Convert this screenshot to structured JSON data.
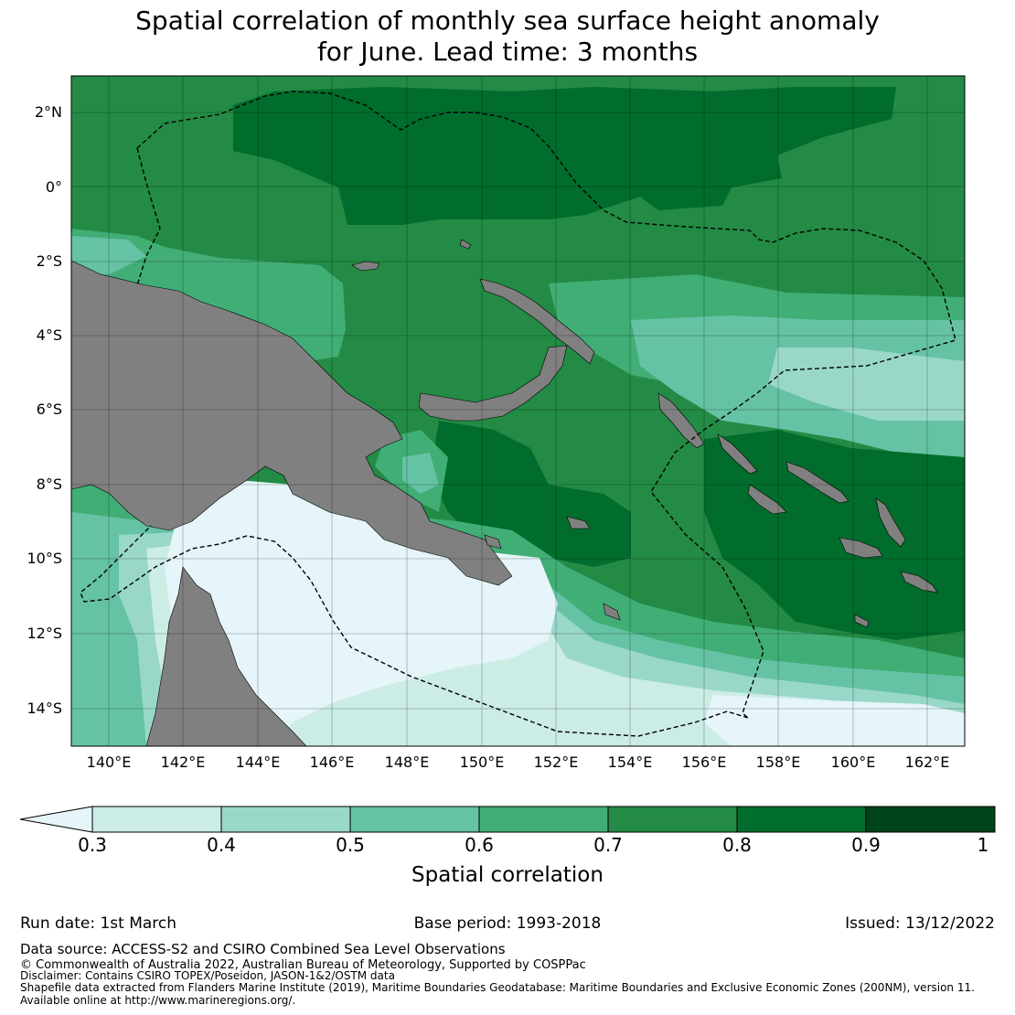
{
  "title_line1": "Spatial correlation of monthly sea surface height anomaly",
  "title_line2": "for June. Lead time: 3 months",
  "map": {
    "lat_labels": [
      "2°N",
      "0°",
      "2°S",
      "4°S",
      "6°S",
      "8°S",
      "10°S",
      "12°S",
      "14°S"
    ],
    "lon_labels": [
      "140°E",
      "142°E",
      "144°E",
      "146°E",
      "148°E",
      "150°E",
      "152°E",
      "154°E",
      "156°E",
      "158°E",
      "160°E",
      "162°E"
    ],
    "land_color": "#808080",
    "eez_boundary_style": "dashed black"
  },
  "colorbar": {
    "title": "Spatial correlation",
    "tick_labels": [
      "0.3",
      "0.4",
      "0.5",
      "0.6",
      "0.7",
      "0.8",
      "0.9",
      "1"
    ],
    "under_color": "#e5f5f9",
    "colors": [
      "#ccece6",
      "#99d8c9",
      "#66c2a4",
      "#41ae76",
      "#238b45",
      "#006d2c",
      "#00441b"
    ]
  },
  "footer": {
    "run_date": "Run date: 1st March",
    "base_period": "Base period: 1993-2018",
    "issued": "Issued: 13/12/2022",
    "data_source": "Data source: ACCESS-S2 and CSIRO Combined Sea Level Observations",
    "copyright": "© Commonwealth of Australia 2022, Australian Bureau of Meteorology, Supported by COSPPac",
    "disclaimer": "Disclaimer: Contains CSIRO TOPEX/Poseidon, JASON-1&2/OSTM data",
    "shapefile": "Shapefile data extracted from Flanders Marine Institute (2019), Maritime Boundaries Geodatabase: Maritime Boundaries and Exclusive Economic Zones (200NM), version 11.",
    "available": "Available online at http://www.marineregions.org/."
  }
}
